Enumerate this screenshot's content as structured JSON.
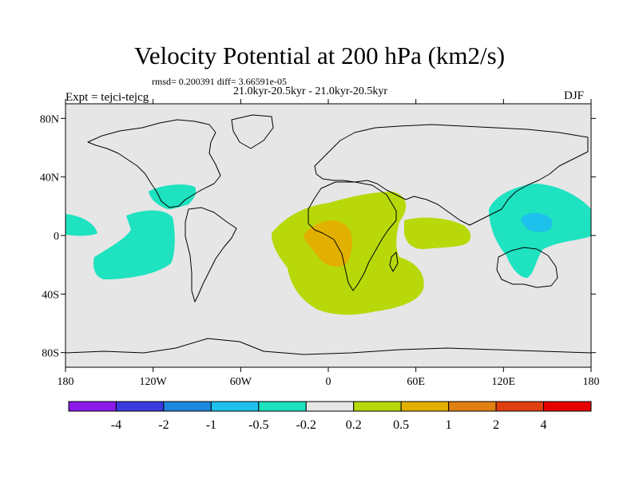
{
  "title": "Velocity Potential at 200 hPa (km2/s)",
  "stats_line": "rmsd= 0.200391 diff= 3.66591e-05",
  "period_line": "21.0kyr-20.5kyr - 21.0kyr-20.5kyr",
  "experiment_label": "Expt = tejci-tejcg",
  "season_label": "DJF",
  "chart_data": {
    "type": "heatmap",
    "title": "Velocity Potential at 200 hPa (km2/s)",
    "projection": "cylindrical equidistant",
    "x_axis": {
      "range": [
        -180,
        180
      ],
      "ticks": [
        -180,
        -120,
        -60,
        0,
        60,
        120,
        180
      ],
      "tick_labels": [
        "180",
        "120W",
        "60W",
        "0",
        "60E",
        "120E",
        "180"
      ]
    },
    "y_axis": {
      "range": [
        -90,
        90
      ],
      "ticks": [
        80,
        40,
        0,
        -40,
        -80
      ],
      "tick_labels": [
        "80N",
        "40N",
        "0",
        "40S",
        "80S"
      ]
    },
    "colorbar": {
      "boundaries": [
        -4,
        -2,
        -1,
        -0.5,
        -0.2,
        0.2,
        0.5,
        1,
        2,
        4
      ],
      "labels": [
        "-4",
        "-2",
        "-1",
        "-0.5",
        "-0.2",
        "0.2",
        "0.5",
        "1",
        "2",
        "4"
      ],
      "colors": [
        "#8c1aea",
        "#3a3ae0",
        "#1e88e0",
        "#1ec0ec",
        "#1ee2c0",
        "#e6e6e6",
        "#b8d80a",
        "#e2b000",
        "#e08010",
        "#e04010",
        "#e80000"
      ]
    },
    "background_color": "#e6e6e6",
    "regions": [
      {
        "name": "eastern-pacific-negative",
        "level": "-0.5 to -0.2",
        "color": "#1ee2c0",
        "center_lon": -110,
        "center_lat": -20
      },
      {
        "name": "gulf-of-mexico-negative",
        "level": "-0.5 to -0.2",
        "color": "#1ee2c0",
        "center_lon": -95,
        "center_lat": 20
      },
      {
        "name": "central-pacific-negative",
        "level": "-0.5 to -0.2",
        "color": "#1ee2c0",
        "center_lon": -172,
        "center_lat": 5
      },
      {
        "name": "west-pacific-negative",
        "level": "-0.5 to -0.2",
        "color": "#1ee2c0",
        "center_lon": 140,
        "center_lat": 5
      },
      {
        "name": "west-pacific-core",
        "level": "-1 to -0.5",
        "color": "#1ec0ec",
        "center_lon": 145,
        "center_lat": 10
      },
      {
        "name": "atlantic-africa-positive",
        "level": "0.2 to 0.5",
        "color": "#b8d80a",
        "center_lon": 10,
        "center_lat": -15
      },
      {
        "name": "indian-ocean-positive",
        "level": "0.2 to 0.5",
        "color": "#b8d80a",
        "center_lon": 70,
        "center_lat": 2
      },
      {
        "name": "congo-core",
        "level": "0.5 to 1",
        "color": "#e2b000",
        "center_lon": 5,
        "center_lat": -5
      }
    ]
  }
}
